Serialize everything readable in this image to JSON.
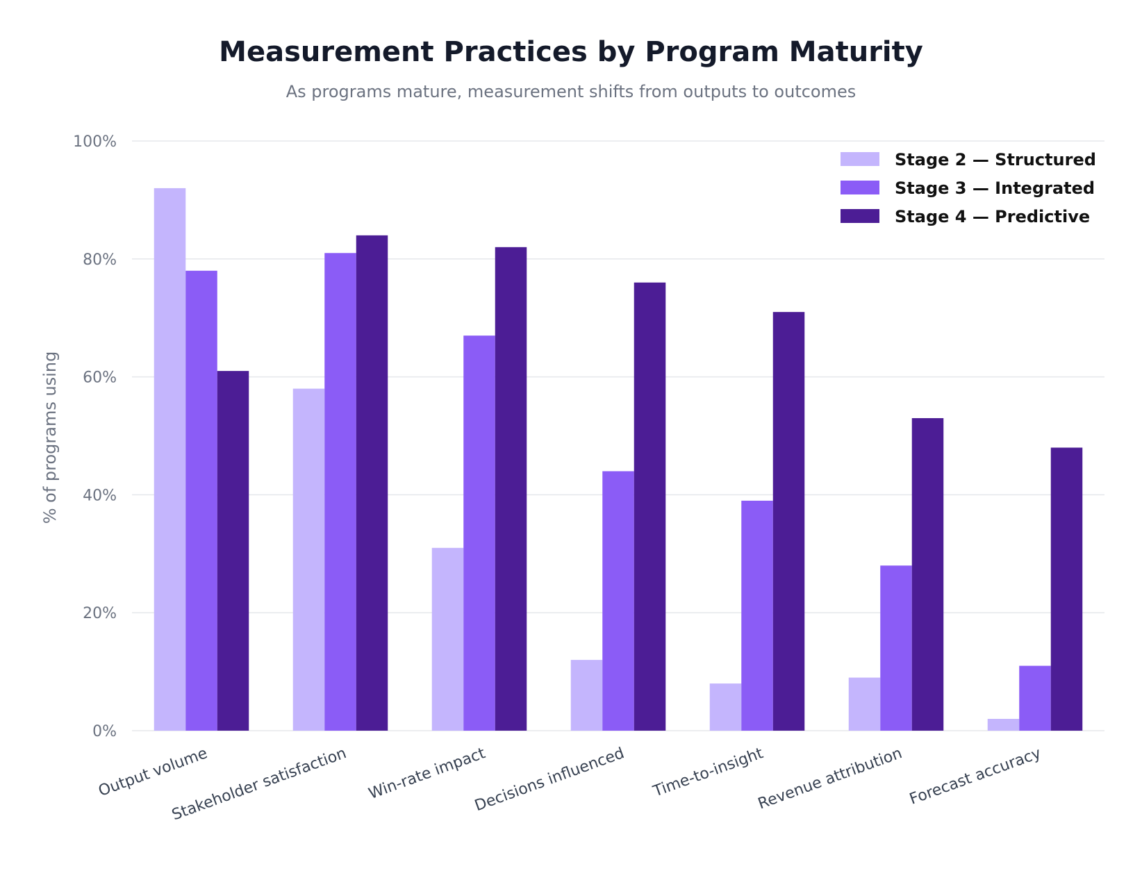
{
  "chart_data": {
    "type": "bar",
    "title": "Measurement Practices by Program Maturity",
    "subtitle": "As programs mature, measurement shifts from outputs to outcomes",
    "xlabel": "",
    "ylabel": "% of programs using",
    "ylim": [
      0,
      100
    ],
    "yticks": [
      0,
      20,
      40,
      60,
      80,
      100
    ],
    "ytick_labels": [
      "0%",
      "20%",
      "40%",
      "60%",
      "80%",
      "100%"
    ],
    "grid": true,
    "legend_position": "top-right",
    "categories": [
      "Output volume",
      "Stakeholder satisfaction",
      "Win-rate impact",
      "Decisions influenced",
      "Time-to-insight",
      "Revenue attribution",
      "Forecast accuracy"
    ],
    "series": [
      {
        "name": "Stage 2 — Structured",
        "color": "#c4b5fd",
        "values": [
          92,
          58,
          31,
          12,
          8,
          9,
          2
        ]
      },
      {
        "name": "Stage 3 — Integrated",
        "color": "#8b5cf6",
        "values": [
          78,
          81,
          67,
          44,
          39,
          28,
          11
        ]
      },
      {
        "name": "Stage 4 — Predictive",
        "color": "#4c1d95",
        "values": [
          61,
          84,
          82,
          76,
          71,
          53,
          48
        ]
      }
    ]
  }
}
